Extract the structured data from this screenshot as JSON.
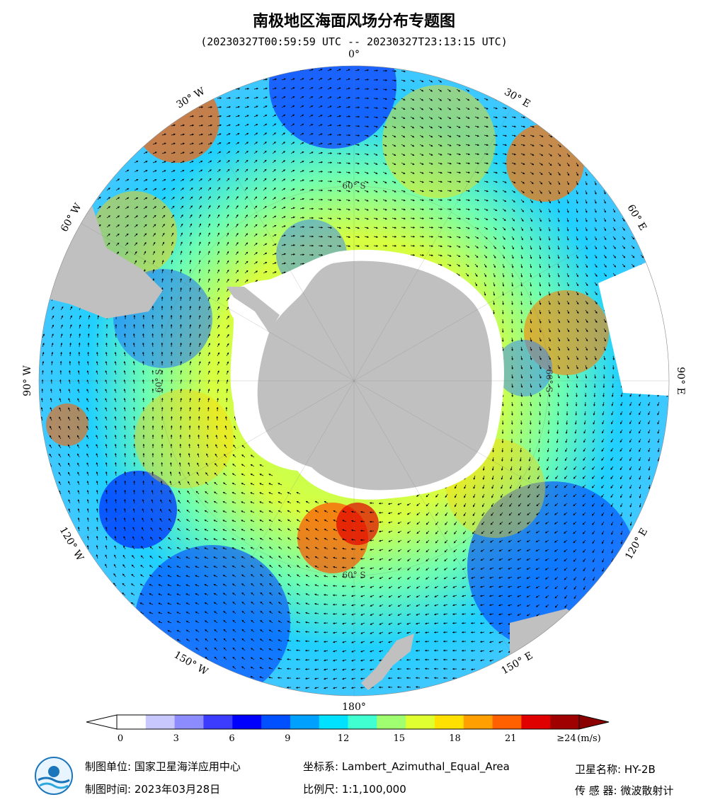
{
  "title": "南极地区海面风场分布专题图",
  "subtitle": "(20230327T00:59:59 UTC -- 20230327T23:13:15 UTC)",
  "map": {
    "projection_view": "south-polar",
    "longitude_labels": [
      "0°",
      "30° E",
      "60° E",
      "90° E",
      "120° E",
      "150° E",
      "180°",
      "150° W",
      "120° W",
      "90° W",
      "60° W",
      "30° W"
    ],
    "latitude_labels": [
      "60° S",
      "60° S",
      "60° S",
      "60° S"
    ],
    "land_color": "#c0c0c0",
    "ice_color": "#ffffff"
  },
  "colorbar": {
    "unit": "(m/s)",
    "ticks": [
      "0",
      "3",
      "6",
      "9",
      "12",
      "15",
      "18",
      "21",
      "≥24"
    ],
    "min": 0,
    "max": 24,
    "colors": [
      "#ffffff",
      "#c8c8ff",
      "#8c8cff",
      "#3c3cff",
      "#0000ff",
      "#0050ff",
      "#00a0ff",
      "#00e0ff",
      "#40ffd0",
      "#a0ff70",
      "#e0ff30",
      "#ffe000",
      "#ffa000",
      "#ff6000",
      "#e00000",
      "#a00000"
    ]
  },
  "footer": {
    "org_label": "制图单位: 国家卫星海洋应用中心",
    "date_label": "制图时间: 2023年03月28日",
    "crs_label": "坐标系: Lambert_Azimuthal_Equal_Area",
    "scale_label": "比例尺: 1:1,100,000",
    "satellite_label": "卫星名称: HY-2B",
    "sensor_label": "传 感 器: 微波散射计"
  }
}
